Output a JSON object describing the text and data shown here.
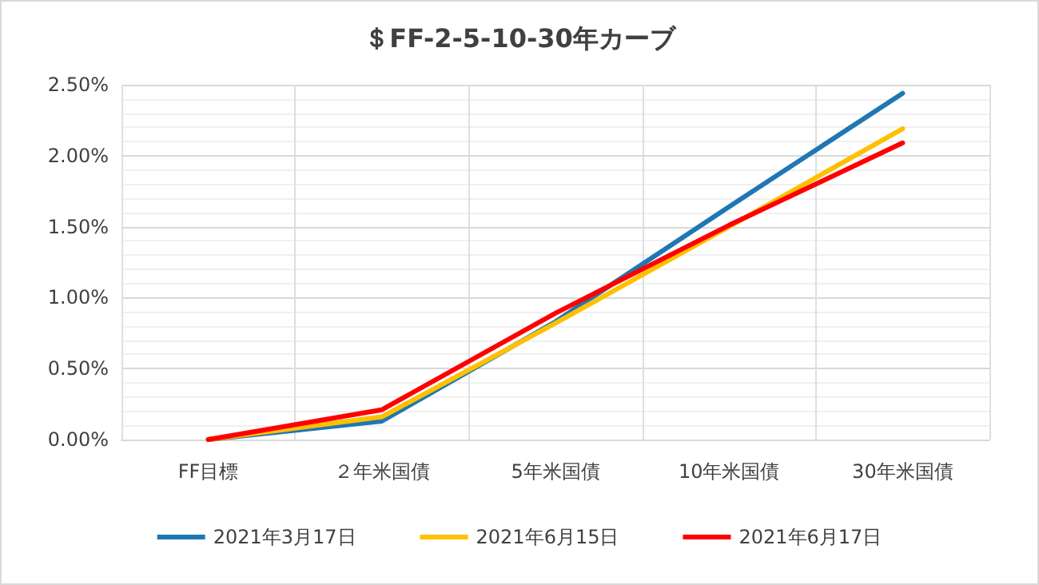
{
  "chart_data": {
    "type": "line",
    "title": "＄FF-2-5-10-30年カーブ",
    "categories": [
      "FF目標",
      "２年米国債",
      "5年米国債",
      "10年米国債",
      "30年米国債"
    ],
    "series": [
      {
        "name": "2021年3月17日",
        "color": "#1f77b4",
        "values": [
          0.0,
          0.13,
          0.83,
          1.64,
          2.44
        ]
      },
      {
        "name": "2021年6月15日",
        "color": "#ffc000",
        "values": [
          0.0,
          0.16,
          0.82,
          1.5,
          2.19
        ]
      },
      {
        "name": "2021年6月17日",
        "color": "#ff0000",
        "values": [
          0.0,
          0.21,
          0.89,
          1.51,
          2.09
        ]
      }
    ],
    "ylim": [
      0,
      2.5
    ],
    "yticks": [
      {
        "value": 0,
        "label": "0.00%"
      },
      {
        "value": 0.5,
        "label": "0.50%"
      },
      {
        "value": 1,
        "label": "1.00%"
      },
      {
        "value": 1.5,
        "label": "1.50%"
      },
      {
        "value": 2,
        "label": "2.00%"
      },
      {
        "value": 2.5,
        "label": "2.50%"
      }
    ],
    "grid": true,
    "legend": "bottom",
    "marker": "none",
    "line_style": "solid"
  }
}
